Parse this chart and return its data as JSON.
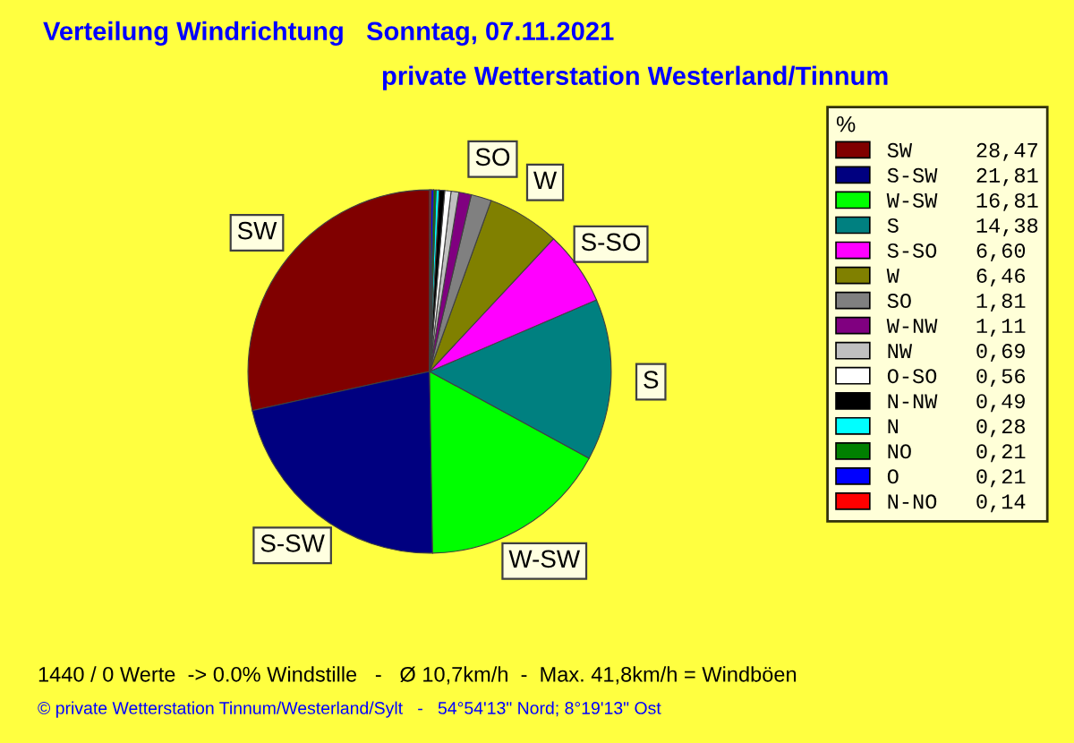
{
  "chart_data": {
    "type": "pie",
    "title": "Verteilung Windrichtung   Sonntag, 07.11.2021",
    "subtitle": "private Wetterstation Westerland/Tinnum",
    "categories": [
      "SW",
      "S-SW",
      "W-SW",
      "S",
      "S-SO",
      "W",
      "SO",
      "W-NW",
      "NW",
      "O-SO",
      "N-NW",
      "N",
      "NO",
      "O",
      "N-NO"
    ],
    "values": [
      28.47,
      21.81,
      16.81,
      14.38,
      6.6,
      6.46,
      1.81,
      1.11,
      0.69,
      0.56,
      0.49,
      0.28,
      0.21,
      0.21,
      0.14
    ],
    "value_labels": [
      "28,47",
      "21,81",
      "16,81",
      "14,38",
      "6,60",
      "6,46",
      "1,81",
      "1,11",
      "0,69",
      "0,56",
      "0,49",
      "0,28",
      "0,21",
      "0,21",
      "0,14"
    ],
    "colors": [
      "#800000",
      "#000080",
      "#00ff00",
      "#008080",
      "#ff00ff",
      "#808000",
      "#808080",
      "#800080",
      "#c0c0c0",
      "#ffffff",
      "#000000",
      "#00ffff",
      "#008000",
      "#0000ff",
      "#ff0000"
    ],
    "legend_title": "%",
    "legend": "right",
    "annotations": [
      "1440 / 0 Werte  -> 0.0% Windstille   -   Ø 10,7km/h  -  Max. 41,8km/h = Windböen",
      "© private Wetterstation Tinnum/Westerland/Sylt   -   54°54'13\" Nord; 8°19'13\" Ost"
    ]
  }
}
